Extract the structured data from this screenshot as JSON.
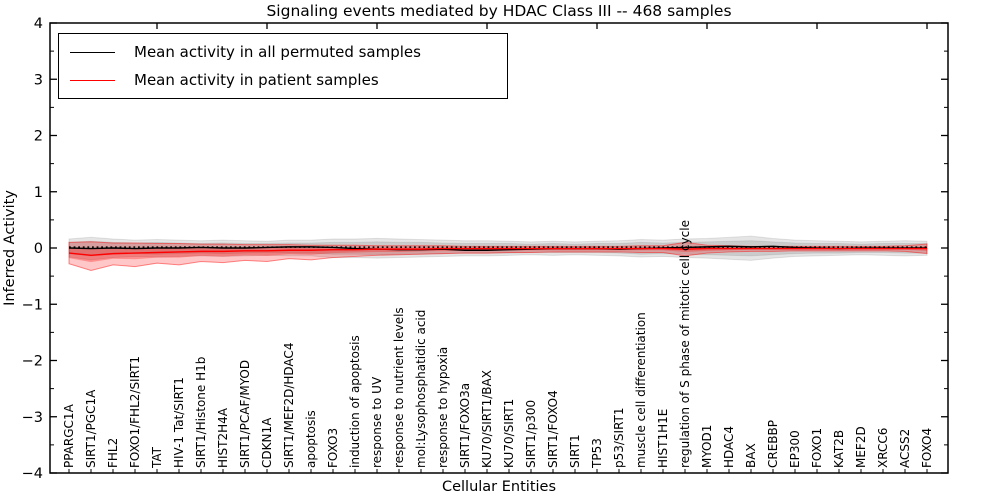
{
  "window": {
    "title": "Signaling events mediated by HDAC Class III -- 468 samples"
  },
  "chart_data": {
    "type": "line",
    "title": "Signaling events mediated by HDAC Class III -- 468 samples",
    "xlabel": "Cellular Entities",
    "ylabel": "Inferred Activity",
    "ylim": [
      -4,
      4
    ],
    "yticks": [
      -4,
      -3,
      -2,
      -1,
      0,
      1,
      2,
      3,
      4
    ],
    "yticklabels": [
      "−4",
      "−3",
      "−2",
      "−1",
      "0",
      "1",
      "2",
      "3",
      "4"
    ],
    "y_minor_tick_step": 0.5,
    "grid": false,
    "legend_position": "upper left",
    "categories": [
      "PPARGC1A",
      "SIRT1/PGC1A",
      "FHL2",
      "FOXO1/FHL2/SIRT1",
      "TAT",
      "HIV-1 Tat/SIRT1",
      "SIRT1/Histone H1b",
      "HIST2H4A",
      "SIRT1/PCAF/MYOD",
      "CDKN1A",
      "SIRT1/MEF2D/HDAC4",
      "apoptosis",
      "FOXO3",
      "induction of apoptosis",
      "response to UV",
      "response to nutrient levels",
      "mol:Lysophosphatidic acid",
      "response to hypoxia",
      "SIRT1/FOXO3a",
      "KU70/SIRT1/BAX",
      "KU70/SIRT1",
      "SIRT1/p300",
      "SIRT1/FOXO4",
      "SIRT1",
      "TP53",
      "p53/SIRT1",
      "muscle cell differentiation",
      "HIST1H1E",
      "regulation of S phase of mitotic cell cycle",
      "MYOD1",
      "HDAC4",
      "BAX",
      "CREBBP",
      "EP300",
      "FOXO1",
      "KAT2B",
      "MEF2D",
      "XRCC6",
      "ACSS2",
      "FOXO4"
    ],
    "series": [
      {
        "name": "Mean activity in all permuted samples",
        "color": "#000000",
        "values": [
          0.0,
          -0.01,
          0.0,
          -0.01,
          0.0,
          0.0,
          0.01,
          0.0,
          0.0,
          0.01,
          0.02,
          0.02,
          0.01,
          -0.01,
          -0.02,
          -0.03,
          -0.03,
          -0.02,
          -0.04,
          -0.04,
          -0.03,
          -0.02,
          -0.01,
          -0.01,
          -0.01,
          -0.02,
          -0.01,
          0.0,
          0.01,
          0.02,
          0.03,
          0.02,
          0.03,
          0.01,
          0.0,
          -0.01,
          0.0,
          0.0,
          0.0,
          0.0
        ]
      },
      {
        "name": "Mean activity in patient samples",
        "color": "#ff0000",
        "values": [
          -0.09,
          -0.13,
          -0.1,
          -0.09,
          -0.08,
          -0.07,
          -0.06,
          -0.06,
          -0.05,
          -0.05,
          -0.04,
          -0.04,
          -0.03,
          -0.03,
          -0.02,
          -0.02,
          -0.02,
          -0.01,
          -0.01,
          -0.01,
          -0.01,
          -0.01,
          -0.01,
          -0.01,
          -0.01,
          -0.01,
          -0.01,
          -0.01,
          -0.02,
          -0.01,
          -0.01,
          -0.01,
          -0.01,
          -0.01,
          -0.01,
          -0.01,
          -0.01,
          -0.01,
          -0.01,
          -0.01
        ]
      }
    ],
    "reference_line": {
      "value": 0.015,
      "style": "dotted",
      "color": "#000000"
    },
    "bands": [
      {
        "name": "permuted-band-outer",
        "color": "#000000",
        "opacity": 0.1,
        "edge_opacity": 0.1,
        "upper": [
          0.16,
          0.19,
          0.16,
          0.14,
          0.15,
          0.14,
          0.13,
          0.14,
          0.13,
          0.12,
          0.14,
          0.14,
          0.16,
          0.16,
          0.17,
          0.16,
          0.15,
          0.14,
          0.13,
          0.13,
          0.12,
          0.11,
          0.12,
          0.11,
          0.12,
          0.13,
          0.15,
          0.14,
          0.16,
          0.17,
          0.19,
          0.21,
          0.17,
          0.14,
          0.13,
          0.12,
          0.11,
          0.12,
          0.13,
          0.12
        ],
        "lower": [
          -0.16,
          -0.21,
          -0.17,
          -0.15,
          -0.16,
          -0.15,
          -0.14,
          -0.15,
          -0.14,
          -0.13,
          -0.14,
          -0.14,
          -0.17,
          -0.17,
          -0.18,
          -0.17,
          -0.16,
          -0.15,
          -0.14,
          -0.14,
          -0.13,
          -0.12,
          -0.13,
          -0.12,
          -0.13,
          -0.14,
          -0.16,
          -0.15,
          -0.17,
          -0.18,
          -0.2,
          -0.22,
          -0.18,
          -0.15,
          -0.14,
          -0.13,
          -0.12,
          -0.13,
          -0.14,
          -0.13
        ]
      },
      {
        "name": "permuted-band-inner",
        "color": "#000000",
        "opacity": 0.11,
        "edge_opacity": 0.08,
        "upper": [
          0.1,
          0.12,
          0.1,
          0.09,
          0.1,
          0.09,
          0.08,
          0.09,
          0.08,
          0.08,
          0.09,
          0.09,
          0.1,
          0.1,
          0.11,
          0.1,
          0.1,
          0.09,
          0.08,
          0.08,
          0.08,
          0.07,
          0.08,
          0.07,
          0.08,
          0.08,
          0.1,
          0.09,
          0.1,
          0.11,
          0.12,
          0.13,
          0.11,
          0.09,
          0.08,
          0.08,
          0.07,
          0.08,
          0.08,
          0.08
        ],
        "lower": [
          -0.1,
          -0.14,
          -0.11,
          -0.1,
          -0.11,
          -0.1,
          -0.09,
          -0.1,
          -0.09,
          -0.08,
          -0.09,
          -0.09,
          -0.11,
          -0.11,
          -0.12,
          -0.11,
          -0.11,
          -0.1,
          -0.09,
          -0.09,
          -0.09,
          -0.08,
          -0.08,
          -0.08,
          -0.08,
          -0.09,
          -0.11,
          -0.1,
          -0.11,
          -0.12,
          -0.13,
          -0.14,
          -0.12,
          -0.1,
          -0.09,
          -0.09,
          -0.08,
          -0.08,
          -0.09,
          -0.09
        ]
      },
      {
        "name": "patient-band-outer",
        "color": "#ff0000",
        "opacity": 0.22,
        "edge_opacity": 0.45,
        "upper": [
          0.1,
          0.11,
          0.09,
          0.09,
          0.08,
          0.08,
          0.07,
          0.07,
          0.06,
          0.06,
          0.06,
          0.05,
          0.05,
          0.05,
          0.04,
          0.04,
          0.04,
          0.04,
          0.03,
          0.03,
          0.03,
          0.03,
          0.03,
          0.03,
          0.03,
          0.03,
          0.04,
          0.04,
          0.1,
          0.05,
          0.04,
          0.03,
          0.03,
          0.03,
          0.03,
          0.03,
          0.03,
          0.03,
          0.04,
          0.07
        ],
        "lower": [
          -0.28,
          -0.4,
          -0.3,
          -0.33,
          -0.27,
          -0.3,
          -0.24,
          -0.26,
          -0.22,
          -0.24,
          -0.19,
          -0.21,
          -0.17,
          -0.15,
          -0.13,
          -0.12,
          -0.11,
          -0.1,
          -0.09,
          -0.09,
          -0.08,
          -0.08,
          -0.07,
          -0.07,
          -0.07,
          -0.07,
          -0.08,
          -0.08,
          -0.14,
          -0.09,
          -0.07,
          -0.06,
          -0.06,
          -0.05,
          -0.05,
          -0.05,
          -0.05,
          -0.05,
          -0.06,
          -0.1
        ]
      },
      {
        "name": "patient-band-inner",
        "color": "#ff0000",
        "opacity": 0.28,
        "edge_opacity": 0.0,
        "upper": [
          0.0,
          -0.02,
          -0.01,
          -0.01,
          -0.01,
          0.0,
          0.0,
          0.0,
          0.0,
          0.0,
          0.01,
          0.0,
          0.01,
          0.01,
          0.01,
          0.01,
          0.01,
          0.01,
          0.01,
          0.01,
          0.01,
          0.01,
          0.01,
          0.01,
          0.01,
          0.01,
          0.01,
          0.01,
          0.03,
          0.02,
          0.01,
          0.01,
          0.01,
          0.01,
          0.01,
          0.01,
          0.01,
          0.01,
          0.01,
          0.03
        ],
        "lower": [
          -0.18,
          -0.25,
          -0.19,
          -0.2,
          -0.17,
          -0.17,
          -0.14,
          -0.15,
          -0.13,
          -0.14,
          -0.11,
          -0.12,
          -0.09,
          -0.08,
          -0.07,
          -0.07,
          -0.06,
          -0.05,
          -0.05,
          -0.05,
          -0.04,
          -0.04,
          -0.04,
          -0.04,
          -0.04,
          -0.04,
          -0.04,
          -0.04,
          -0.07,
          -0.05,
          -0.04,
          -0.03,
          -0.03,
          -0.03,
          -0.03,
          -0.03,
          -0.03,
          -0.03,
          -0.03,
          -0.05
        ]
      }
    ],
    "colors": {
      "axis": "#000000",
      "background": "#ffffff"
    }
  },
  "legend": {
    "items": [
      {
        "label": "Mean activity in all permuted samples",
        "color": "#000000"
      },
      {
        "label": "Mean activity in patient samples",
        "color": "#ff0000"
      }
    ]
  }
}
